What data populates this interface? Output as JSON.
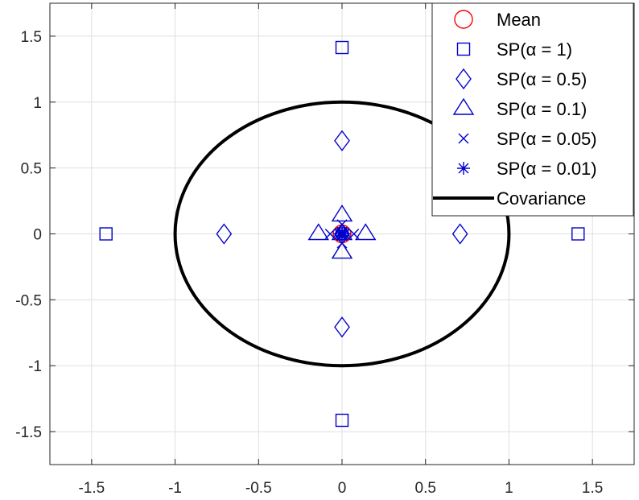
{
  "chart_data": {
    "type": "scatter",
    "title": "",
    "xlabel": "",
    "ylabel": "",
    "xlim": [
      -1.75,
      1.75
    ],
    "ylim": [
      -1.75,
      1.75
    ],
    "xticks": [
      -1.5,
      -1,
      -0.5,
      0,
      0.5,
      1,
      1.5
    ],
    "yticks": [
      -1.5,
      -1,
      -0.5,
      0,
      0.5,
      1,
      1.5
    ],
    "xtick_labels": [
      "-1.5",
      "-1",
      "-0.5",
      "0",
      "0.5",
      "1",
      "1.5"
    ],
    "ytick_labels": [
      "-1.5",
      "-1",
      "-0.5",
      "0",
      "0.5",
      "1",
      "1.5"
    ],
    "grid": true,
    "legend_position": "top-right",
    "series": [
      {
        "name": "Mean",
        "marker": "circle",
        "color": "#ff0000",
        "points": [
          [
            0,
            0
          ]
        ]
      },
      {
        "name": "SP(α = 1)",
        "marker": "square",
        "color": "#0000cc",
        "points": [
          [
            0,
            0
          ],
          [
            1.414,
            0
          ],
          [
            0,
            1.414
          ],
          [
            -1.414,
            0
          ],
          [
            0,
            -1.414
          ]
        ]
      },
      {
        "name": "SP(α = 0.5)",
        "marker": "diamond",
        "color": "#0000cc",
        "points": [
          [
            0,
            0
          ],
          [
            0.707,
            0
          ],
          [
            0,
            0.707
          ],
          [
            -0.707,
            0
          ],
          [
            0,
            -0.707
          ]
        ]
      },
      {
        "name": "SP(α = 0.1)",
        "marker": "triangle",
        "color": "#0000cc",
        "points": [
          [
            0,
            0
          ],
          [
            0.141,
            0
          ],
          [
            0,
            0.141
          ],
          [
            -0.141,
            0
          ],
          [
            0,
            -0.141
          ]
        ]
      },
      {
        "name": "SP(α = 0.05)",
        "marker": "x",
        "color": "#0000cc",
        "points": [
          [
            0,
            0
          ],
          [
            0.071,
            0
          ],
          [
            0,
            0.071
          ],
          [
            -0.071,
            0
          ],
          [
            0,
            -0.071
          ]
        ]
      },
      {
        "name": "SP(α = 0.01)",
        "marker": "asterisk",
        "color": "#0000cc",
        "points": [
          [
            0,
            0
          ],
          [
            0.014,
            0
          ],
          [
            0,
            0.014
          ],
          [
            -0.014,
            0
          ],
          [
            0,
            -0.014
          ]
        ]
      },
      {
        "name": "Covariance",
        "marker": "line",
        "color": "#000000",
        "shape": "ellipse",
        "center": [
          0,
          0
        ],
        "radius_x": 1,
        "radius_y": 1
      }
    ]
  }
}
